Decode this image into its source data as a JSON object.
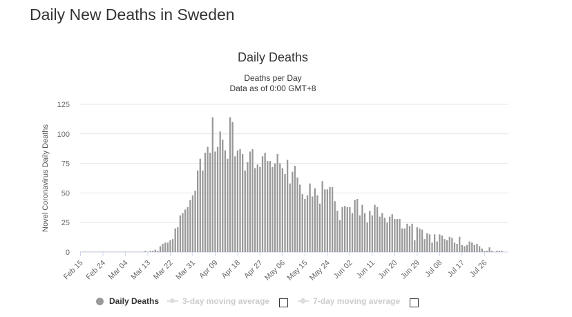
{
  "page_title": "Daily New Deaths in Sweden",
  "colors": {
    "bar": "#999999",
    "grid": "#e6e6e6",
    "text": "#333333"
  },
  "legend": {
    "series_label": "Daily Deaths",
    "avg3_label": "3-day moving average",
    "avg7_label": "7-day moving average"
  },
  "chart_data": {
    "type": "bar",
    "title": "Daily Deaths",
    "subtitle": "Deaths per Day",
    "subtitle2": "Data as of 0:00 GMT+8",
    "ylabel": "Novel Coronavirus Daily Deaths",
    "xlabel": "",
    "ylim": [
      0,
      125
    ],
    "y_ticks": [
      0,
      25,
      50,
      75,
      100,
      125
    ],
    "x_tick_labels": [
      "Feb 15",
      "Feb 24",
      "Mar 04",
      "Mar 13",
      "Mar 22",
      "Mar 31",
      "Apr 09",
      "Apr 18",
      "Apr 27",
      "May 06",
      "May 15",
      "May 24",
      "Jun 02",
      "Jun 11",
      "Jun 20",
      "Jun 29",
      "Jul 08",
      "Jul 17",
      "Jul 26"
    ],
    "x_tick_interval_days": 9,
    "start_date": "Feb 15",
    "values": [
      0,
      0,
      0,
      0,
      0,
      0,
      0,
      0,
      0,
      0,
      0,
      0,
      0,
      0,
      0,
      0,
      0,
      0,
      0,
      0,
      0,
      0,
      0,
      0,
      0,
      0,
      1,
      0,
      1,
      1,
      2,
      1,
      5,
      7,
      8,
      8,
      10,
      11,
      20,
      21,
      31,
      33,
      36,
      38,
      44,
      48,
      52,
      69,
      79,
      69,
      84,
      89,
      84,
      114,
      85,
      89,
      102,
      95,
      86,
      79,
      114,
      110,
      81,
      86,
      87,
      83,
      69,
      76,
      85,
      87,
      71,
      74,
      72,
      81,
      84,
      77,
      77,
      72,
      75,
      83,
      75,
      71,
      66,
      78,
      58,
      68,
      73,
      63,
      57,
      49,
      45,
      48,
      58,
      47,
      54,
      48,
      41,
      60,
      53,
      53,
      55,
      55,
      43,
      35,
      27,
      38,
      39,
      38,
      38,
      33,
      44,
      45,
      31,
      40,
      33,
      25,
      35,
      31,
      40,
      38,
      30,
      33,
      29,
      25,
      30,
      32,
      28,
      28,
      28,
      20,
      20,
      24,
      22,
      24,
      10,
      21,
      20,
      19,
      11,
      16,
      15,
      8,
      15,
      9,
      15,
      14,
      11,
      10,
      13,
      12,
      8,
      7,
      13,
      6,
      5,
      6,
      9,
      8,
      6,
      7,
      5,
      3,
      1,
      1,
      4,
      1,
      0,
      1,
      1,
      1
    ]
  }
}
